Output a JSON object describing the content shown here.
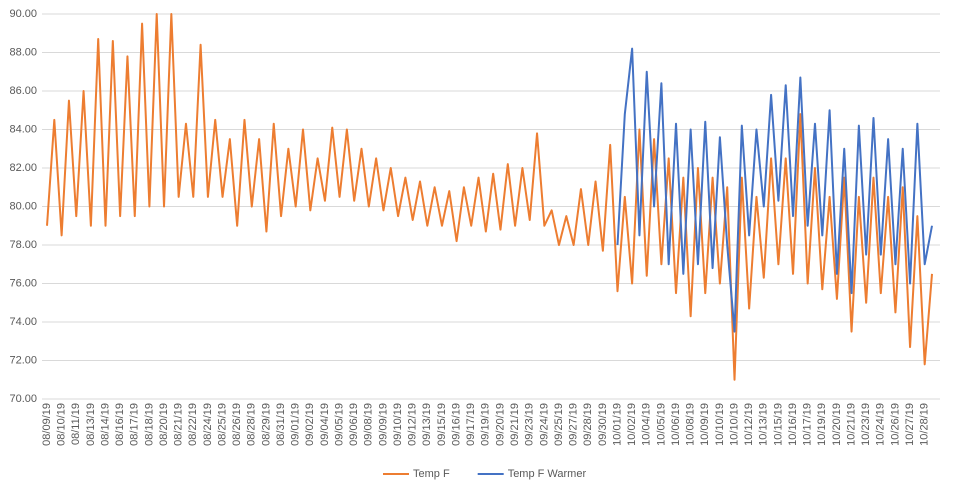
{
  "chart_data": {
    "type": "line",
    "categories": [
      "08/09/19",
      null,
      "08/10/19",
      null,
      "08/11/19",
      null,
      "08/13/19",
      null,
      "08/14/19",
      null,
      "08/16/19",
      null,
      "08/17/19",
      null,
      "08/18/19",
      null,
      "08/20/19",
      null,
      "08/21/19",
      null,
      "08/22/19",
      null,
      "08/24/19",
      null,
      "08/25/19",
      null,
      "08/26/19",
      null,
      "08/28/19",
      null,
      "08/29/19",
      null,
      "08/31/19",
      null,
      "09/01/19",
      null,
      "09/02/19",
      null,
      "09/04/19",
      null,
      "09/05/19",
      null,
      "09/06/19",
      null,
      "09/08/19",
      null,
      "09/09/19",
      null,
      "09/10/19",
      null,
      "09/12/19",
      null,
      "09/13/19",
      null,
      "09/15/19",
      null,
      "09/16/19",
      null,
      "09/17/19",
      null,
      "09/19/19",
      null,
      "09/20/19",
      null,
      "09/21/19",
      null,
      "09/23/19",
      null,
      "09/24/19",
      null,
      "09/25/19",
      null,
      "09/27/19",
      null,
      "09/28/19",
      null,
      "09/30/19",
      null,
      "10/01/19",
      null,
      "10/02/19",
      null,
      "10/04/19",
      null,
      "10/05/19",
      null,
      "10/06/19",
      null,
      "10/08/19",
      null,
      "10/09/19",
      null,
      "10/10/19",
      null,
      "10/10/19",
      null,
      "10/12/19",
      null,
      "10/13/19",
      null,
      "10/15/19",
      null,
      "10/16/19",
      null,
      "10/17/19",
      null,
      "10/19/19",
      null,
      "10/20/19",
      null,
      "10/21/19",
      null,
      "10/23/19",
      null,
      "10/24/19",
      null,
      "10/26/19",
      null,
      "10/27/19",
      null,
      "10/28/19",
      null
    ],
    "series": [
      {
        "name": "Temp F",
        "color": "#ed7d31",
        "values": [
          79,
          84.5,
          78.5,
          85.5,
          79.5,
          86,
          79,
          88.7,
          79,
          88.6,
          79.5,
          87.8,
          79.5,
          89.5,
          80,
          90,
          80,
          90,
          80.5,
          84.3,
          80.5,
          88.4,
          80.5,
          84.5,
          80.5,
          83.5,
          79,
          84.5,
          80,
          83.5,
          78.7,
          84.3,
          79.5,
          83,
          80,
          84,
          79.8,
          82.5,
          80.3,
          84.1,
          80.5,
          84,
          80.3,
          83,
          80,
          82.5,
          79.8,
          82,
          79.5,
          81.5,
          79.3,
          81.3,
          79,
          81,
          79,
          80.8,
          78.2,
          81,
          79,
          81.5,
          78.7,
          81.7,
          78.8,
          82.2,
          79,
          82,
          79.3,
          83.8,
          79,
          79.8,
          78,
          79.5,
          78,
          80.9,
          78,
          81.3,
          77.7,
          83.2,
          75.6,
          80.5,
          76,
          84,
          76.4,
          83.5,
          77,
          82.5,
          75.5,
          81.5,
          74.3,
          82,
          75.5,
          81.5,
          76,
          81,
          71,
          81.5,
          74.7,
          80.5,
          76.3,
          82.5,
          77,
          82.5,
          76.5,
          84.8,
          76,
          82,
          75.7,
          80.5,
          75.2,
          81.5,
          73.5,
          80.5,
          75,
          81.5,
          75.5,
          80.5,
          74.5,
          81,
          72.7,
          79.5,
          71.8,
          76.5
        ]
      },
      {
        "name": "Temp F Warmer",
        "color": "#4472c4",
        "values": [
          null,
          null,
          null,
          null,
          null,
          null,
          null,
          null,
          null,
          null,
          null,
          null,
          null,
          null,
          null,
          null,
          null,
          null,
          null,
          null,
          null,
          null,
          null,
          null,
          null,
          null,
          null,
          null,
          null,
          null,
          null,
          null,
          null,
          null,
          null,
          null,
          null,
          null,
          null,
          null,
          null,
          null,
          null,
          null,
          null,
          null,
          null,
          null,
          null,
          null,
          null,
          null,
          null,
          null,
          null,
          null,
          null,
          null,
          null,
          null,
          null,
          null,
          null,
          null,
          null,
          null,
          null,
          null,
          null,
          null,
          null,
          null,
          null,
          null,
          null,
          null,
          null,
          null,
          78,
          84.8,
          88.2,
          78.5,
          87,
          80,
          86.4,
          77,
          84.3,
          76.5,
          84,
          77,
          84.4,
          76.8,
          83.6,
          78,
          73.5,
          84.2,
          78.5,
          84,
          80,
          85.8,
          80.3,
          86.3,
          79.5,
          86.7,
          79,
          84.3,
          78.5,
          85,
          76.5,
          83,
          75.5,
          84.2,
          77.5,
          84.6,
          77.5,
          83.5,
          77,
          83,
          76,
          84.3,
          77,
          79
        ]
      }
    ],
    "ylim": [
      70,
      90
    ],
    "yticks": [
      {
        "value": 70,
        "label": "70.00"
      },
      {
        "value": 72,
        "label": "72.00"
      },
      {
        "value": 74,
        "label": "74.00"
      },
      {
        "value": 76,
        "label": "76.00"
      },
      {
        "value": 78,
        "label": "78.00"
      },
      {
        "value": 80,
        "label": "80.00"
      },
      {
        "value": 82,
        "label": "82.00"
      },
      {
        "value": 84,
        "label": "84.00"
      },
      {
        "value": 86,
        "label": "86.00"
      },
      {
        "value": 88,
        "label": "88.00"
      },
      {
        "value": 90,
        "label": "90.00"
      }
    ],
    "grid": true,
    "legend": "bottom"
  }
}
